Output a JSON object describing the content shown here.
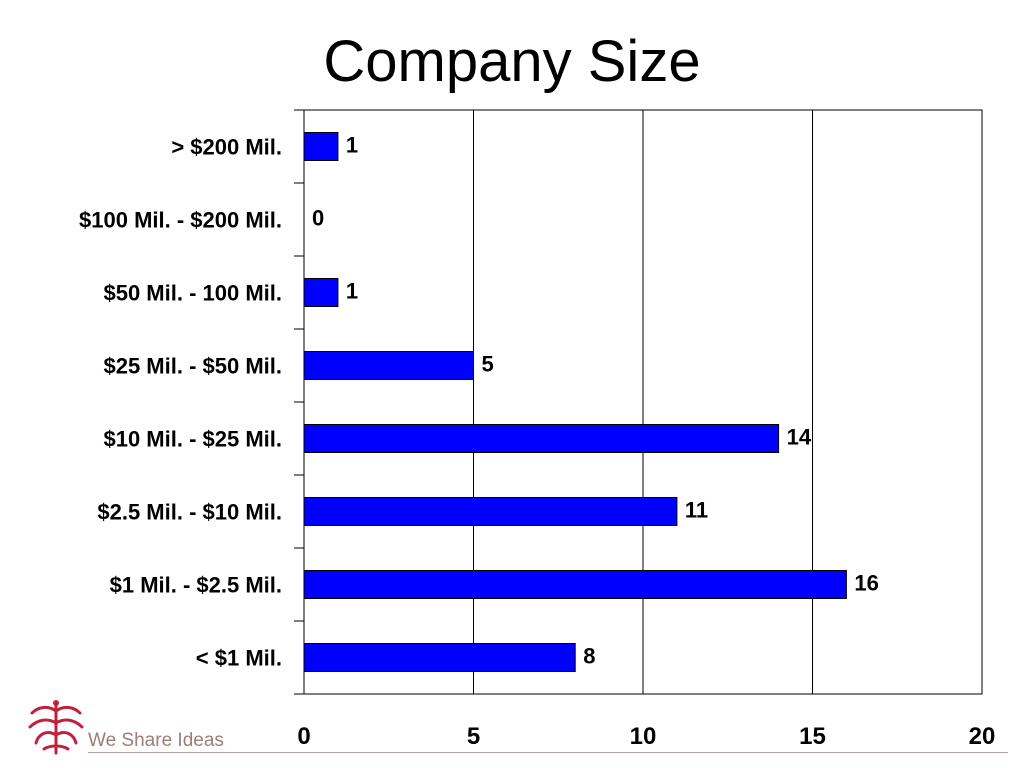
{
  "title": "Company Size",
  "footer": {
    "tagline": "We Share Ideas",
    "logo_icon": "wheat-sprig-icon"
  },
  "colors": {
    "bar": "#0000ff",
    "bar_stroke": "#000000",
    "logo": "#c0223b",
    "footer_text": "#9a7f77"
  },
  "chart_data": {
    "type": "bar",
    "orientation": "horizontal",
    "title": "Company Size",
    "categories": [
      "> $200 Mil.",
      "$100 Mil. - $200 Mil.",
      "$50 Mil. - 100 Mil.",
      "$25 Mil. - $50 Mil.",
      "$10 Mil. - $25 Mil.",
      "$2.5 Mil. - $10 Mil.",
      "$1 Mil. - $2.5 Mil.",
      "< $1 Mil."
    ],
    "values": [
      1,
      0,
      1,
      5,
      14,
      11,
      16,
      8
    ],
    "data_labels": [
      "1",
      "0",
      "1",
      "5",
      "14",
      "11",
      "16",
      "8"
    ],
    "xlim": [
      0,
      20
    ],
    "x_ticks": [
      0,
      5,
      10,
      15,
      20
    ],
    "x_tick_labels": [
      "0",
      "5",
      "10",
      "15",
      "20"
    ],
    "grid": "vertical",
    "legend": "none"
  }
}
